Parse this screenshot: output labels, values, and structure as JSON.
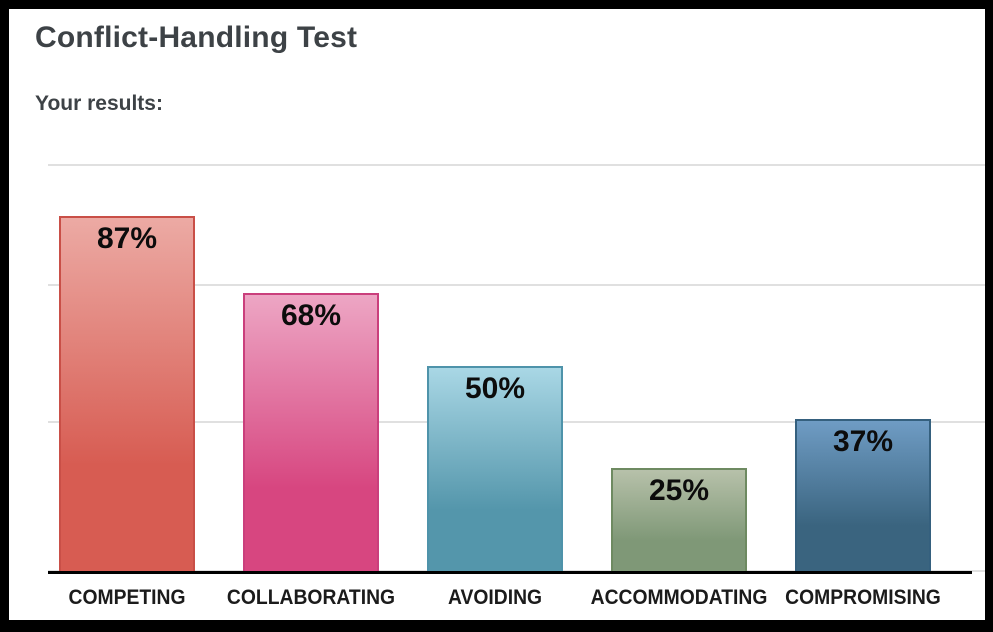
{
  "page": {
    "title": "Conflict-Handling Test",
    "subtitle": "Your results:"
  },
  "chart_data": {
    "type": "bar",
    "title": "Conflict-Handling Test",
    "xlabel": "",
    "ylabel": "",
    "categories": [
      "COMPETING",
      "COLLABORATING",
      "AVOIDING",
      "ACCOMMODATING",
      "COMPROMISING"
    ],
    "values": [
      87,
      68,
      50,
      25,
      37
    ],
    "value_labels": [
      "87%",
      "68%",
      "50%",
      "25%",
      "37%"
    ],
    "ylim": [
      0,
      100
    ],
    "grid": true,
    "gridline_levels_pct": [
      100,
      70.4,
      36.7,
      0
    ],
    "gridline_color": "#e0e0e0",
    "axis_color": "#000000",
    "background_color": "#ffffff",
    "frame_color": "#000000",
    "title_color": "#3d4246",
    "category_label_color": "#1b1b1b",
    "value_label_color": "#0c0c0c",
    "bar_colors": [
      {
        "name": "salmon-red",
        "top": "#ecaaa4",
        "bottom": "#d75c52",
        "border": "#c94f47"
      },
      {
        "name": "pink-magenta",
        "top": "#eda6c4",
        "bottom": "#d74680",
        "border": "#ca3f7c"
      },
      {
        "name": "light-teal",
        "top": "#a9d7e5",
        "bottom": "#5496ab",
        "border": "#4e93aa"
      },
      {
        "name": "sage-green",
        "top": "#b7c1aa",
        "bottom": "#7f9877",
        "border": "#6e8a61"
      },
      {
        "name": "steel-blue",
        "top": "#6f9cc4",
        "bottom": "#3a647f",
        "border": "#35607e"
      }
    ],
    "legend": null
  }
}
